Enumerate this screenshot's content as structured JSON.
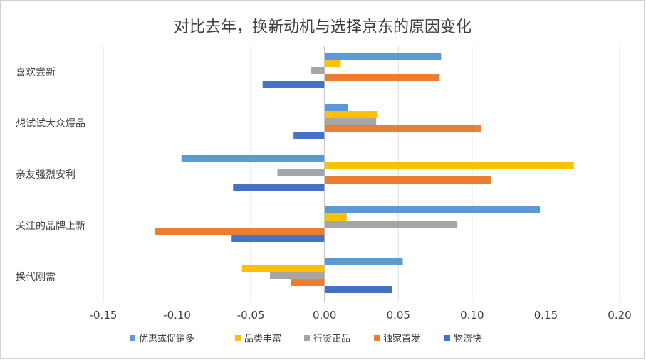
{
  "chart_data": {
    "type": "bar",
    "orientation": "horizontal",
    "title": "对比去年，换新动机与选择京东的原因变化",
    "xlabel": "",
    "ylabel": "",
    "categories": [
      "喜欢尝新",
      "想试试大众爆品",
      "亲友强烈安利",
      "关注的品牌上新",
      "换代刚需"
    ],
    "series": [
      {
        "name": "优惠或促销多",
        "color": "#5B9BD5",
        "values": [
          0.079,
          0.016,
          -0.097,
          0.146,
          0.053
        ]
      },
      {
        "name": "品类丰富",
        "color": "#FFC000",
        "values": [
          0.011,
          0.036,
          0.169,
          0.015,
          -0.056
        ]
      },
      {
        "name": "行货正品",
        "color": "#A5A5A5",
        "values": [
          -0.009,
          0.035,
          -0.032,
          0.09,
          -0.037
        ]
      },
      {
        "name": "独家首发",
        "color": "#ED7D31",
        "values": [
          0.078,
          0.106,
          0.113,
          -0.115,
          -0.023
        ]
      },
      {
        "name": "物流快",
        "color": "#4472C4",
        "values": [
          -0.042,
          -0.021,
          -0.062,
          -0.063,
          0.046
        ]
      }
    ],
    "xlim": [
      -0.15,
      0.2
    ],
    "xticks": [
      "-0.15",
      "-0.10",
      "-0.05",
      "0.00",
      "0.05",
      "0.10",
      "0.15",
      "0.20"
    ],
    "grid": true,
    "legend_position": "bottom"
  }
}
